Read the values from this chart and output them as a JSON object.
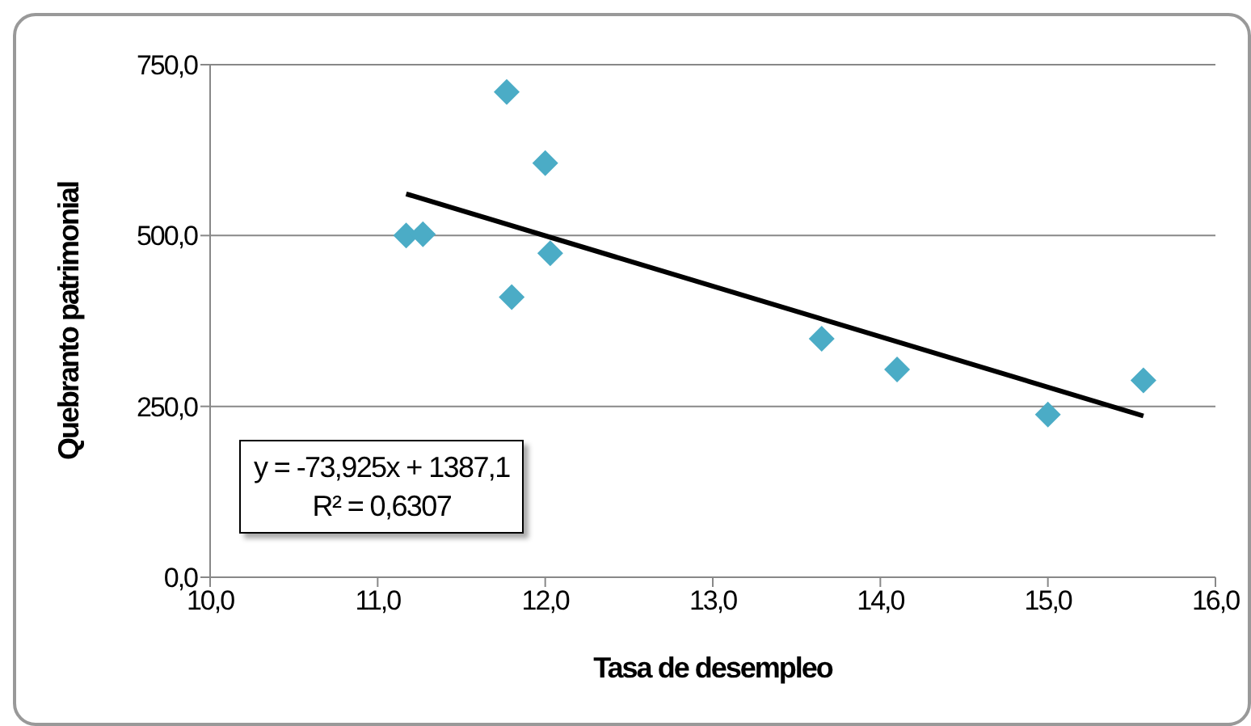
{
  "chart_data": {
    "type": "scatter",
    "xlabel": "Tasa de desempleo",
    "ylabel": "Quebranto patrimonial",
    "x": [
      11.17,
      11.27,
      11.77,
      12.0,
      11.8,
      12.03,
      13.65,
      14.1,
      15.0,
      15.57
    ],
    "series": [
      {
        "color": "#4bacc6",
        "marker": "diamond",
        "values": [
          500,
          502,
          710,
          606,
          410,
          474,
          349,
          304,
          238,
          288
        ]
      },
      {
        "type": "line",
        "color": "#000000",
        "marker": "none",
        "x": [
          11.17,
          15.57
        ],
        "values": [
          561,
          236
        ]
      }
    ],
    "xlim": [
      10,
      16
    ],
    "xticks": [
      {
        "value": 10,
        "label": "10,0"
      },
      {
        "value": 11,
        "label": "11,0"
      },
      {
        "value": 12,
        "label": "12,0"
      },
      {
        "value": 13,
        "label": "13,0"
      },
      {
        "value": 14,
        "label": "14,0"
      },
      {
        "value": 15,
        "label": "15,0"
      },
      {
        "value": 16,
        "label": "16,0"
      }
    ],
    "ylim": [
      0,
      750
    ],
    "yticks": [
      {
        "value": 0,
        "label": "0,0"
      },
      {
        "value": 250,
        "label": "250,0"
      },
      {
        "value": 500,
        "label": "500,0"
      },
      {
        "value": 750,
        "label": "750,0"
      }
    ],
    "grid": "y",
    "legend": false,
    "annotations": [
      "y = -73,925x + 1387,1",
      "R² = 0,6307"
    ]
  }
}
